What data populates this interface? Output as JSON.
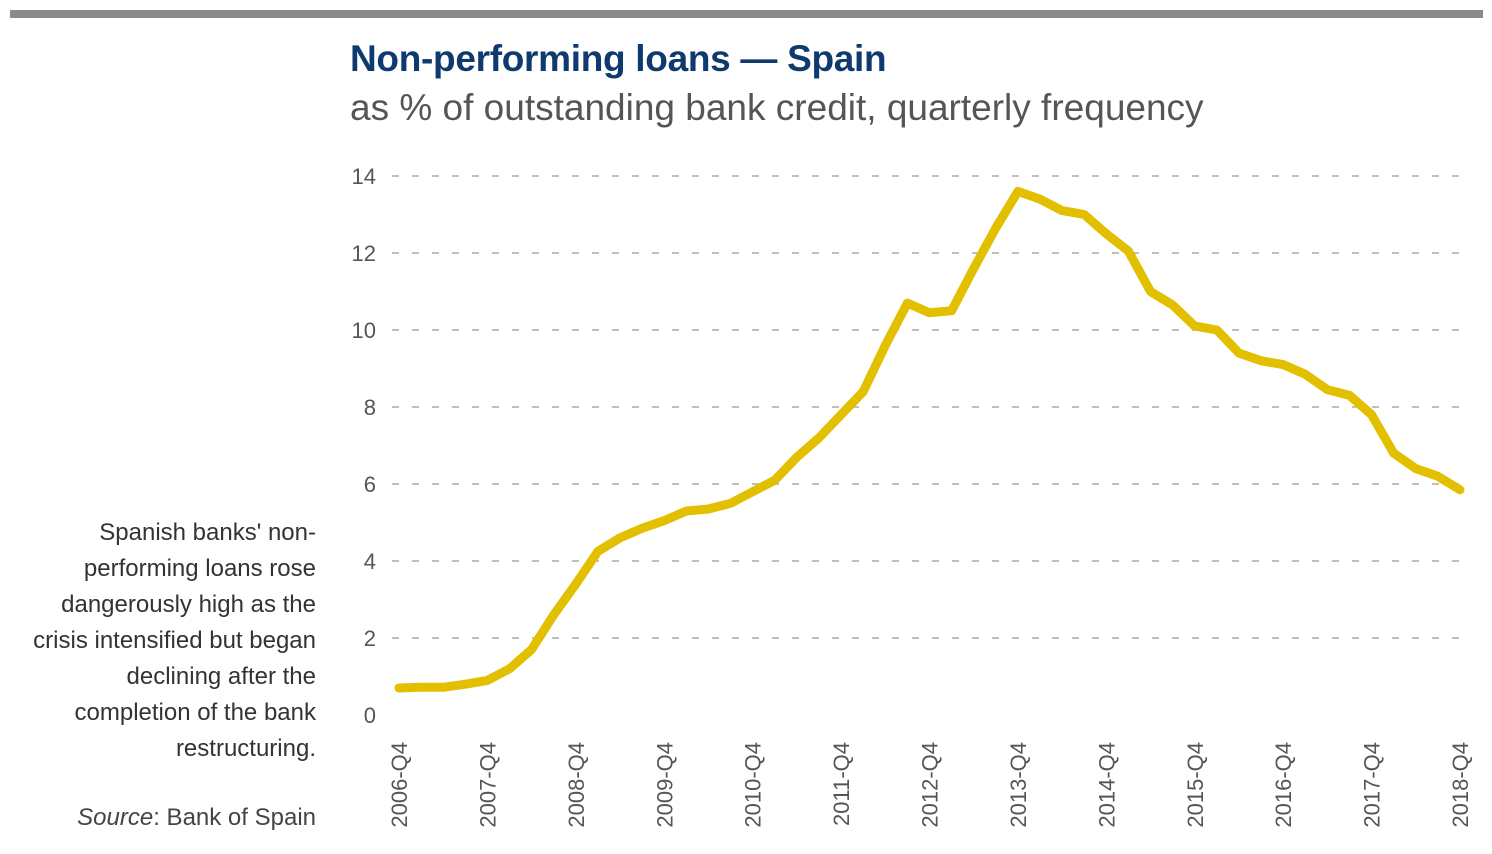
{
  "header": {
    "title": "Non-performing loans — Spain",
    "subtitle": "as % of outstanding bank credit, quarterly frequency"
  },
  "annotation": {
    "text": "Spanish banks' non-performing loans rose dangerously high as the crisis intensified but began declining after the completion of the bank restructuring.",
    "source_label": "Source",
    "source_text": ": Bank of Spain"
  },
  "colors": {
    "series": "#e2c000",
    "title": "#0f3a6e",
    "grid": "#aaaaaa",
    "rule": "#8a8a8a"
  },
  "chart_data": {
    "type": "line",
    "title": "Non-performing loans — Spain",
    "subtitle": "as % of outstanding bank credit, quarterly frequency",
    "xlabel": "",
    "ylabel": "",
    "ylim": [
      0,
      14
    ],
    "yticks": [
      0,
      2,
      4,
      6,
      8,
      10,
      12,
      14
    ],
    "grid": true,
    "legend": "none",
    "x": [
      "2006-Q4",
      "2007-Q1",
      "2007-Q2",
      "2007-Q3",
      "2007-Q4",
      "2008-Q1",
      "2008-Q2",
      "2008-Q3",
      "2008-Q4",
      "2009-Q1",
      "2009-Q2",
      "2009-Q3",
      "2009-Q4",
      "2010-Q1",
      "2010-Q2",
      "2010-Q3",
      "2010-Q4",
      "2011-Q1",
      "2011-Q2",
      "2011-Q3",
      "2011-Q4",
      "2012-Q1",
      "2012-Q2",
      "2012-Q3",
      "2012-Q4",
      "2013-Q1",
      "2013-Q2",
      "2013-Q3",
      "2013-Q4",
      "2014-Q1",
      "2014-Q2",
      "2014-Q3",
      "2014-Q4",
      "2015-Q1",
      "2015-Q2",
      "2015-Q3",
      "2015-Q4",
      "2016-Q1",
      "2016-Q2",
      "2016-Q3",
      "2016-Q4",
      "2017-Q1",
      "2017-Q2",
      "2017-Q3",
      "2017-Q4",
      "2018-Q1",
      "2018-Q2",
      "2018-Q3",
      "2018-Q4"
    ],
    "xtick_labels": [
      "2006-Q4",
      "2007-Q4",
      "2008-Q4",
      "2009-Q4",
      "2010-Q4",
      "2011-Q4",
      "2012-Q4",
      "2013-Q4",
      "2014-Q4",
      "2015-Q4",
      "2016-Q4",
      "2017-Q4",
      "2018-Q4"
    ],
    "series": [
      {
        "values": [
          0.7,
          0.72,
          0.72,
          0.8,
          0.9,
          1.2,
          1.7,
          2.6,
          3.4,
          4.25,
          4.6,
          4.85,
          5.05,
          5.3,
          5.35,
          5.5,
          5.8,
          6.1,
          6.7,
          7.2,
          7.8,
          8.4,
          9.6,
          10.7,
          10.45,
          10.5,
          11.6,
          12.65,
          13.6,
          13.4,
          13.1,
          13.0,
          12.5,
          12.05,
          11.0,
          10.65,
          10.1,
          10.0,
          9.4,
          9.2,
          9.1,
          8.85,
          8.45,
          8.3,
          7.8,
          6.8,
          6.4,
          6.2,
          5.85
        ]
      }
    ]
  }
}
